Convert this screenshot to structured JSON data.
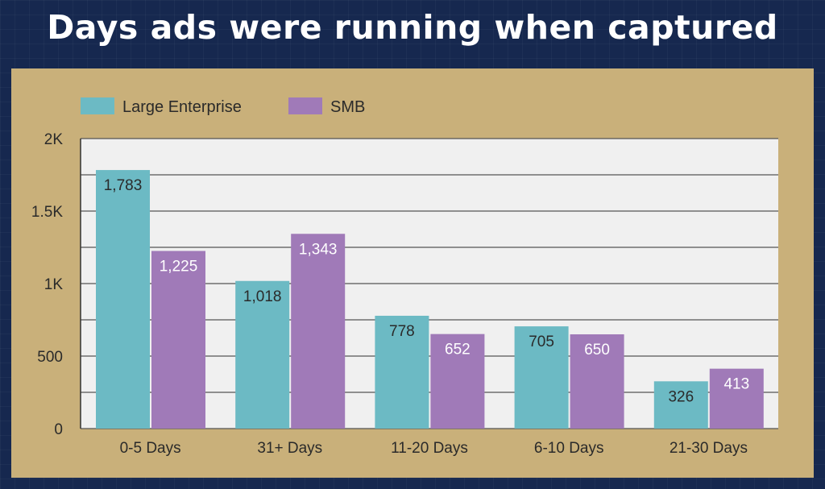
{
  "title": "Days ads were running when captured",
  "colors": {
    "background": "#16284f",
    "panel": "#c9b07a",
    "plot_area": "#f0f0f0",
    "large_enterprise": "#6cbac4",
    "smb": "#a07ab8"
  },
  "chart_data": {
    "type": "bar",
    "title": "Days ads were running when captured",
    "categories": [
      "0-5 Days",
      "31+ Days",
      "11-20 Days",
      "6-10 Days",
      "21-30 Days"
    ],
    "series": [
      {
        "name": "Large Enterprise",
        "values": [
          1783,
          1018,
          778,
          705,
          326
        ],
        "labels": [
          "1,783",
          "1,018",
          "778",
          "705",
          "326"
        ]
      },
      {
        "name": "SMB",
        "values": [
          1225,
          1343,
          652,
          650,
          413
        ],
        "labels": [
          "1,225",
          "1,343",
          "652",
          "650",
          "413"
        ]
      }
    ],
    "yticks": [
      0,
      500,
      1000,
      1500,
      2000
    ],
    "ytick_labels": [
      "0",
      "500",
      "1K",
      "1.5K",
      "2K"
    ],
    "ylim": [
      0,
      2000
    ],
    "grid": true,
    "legend": "top-left"
  }
}
